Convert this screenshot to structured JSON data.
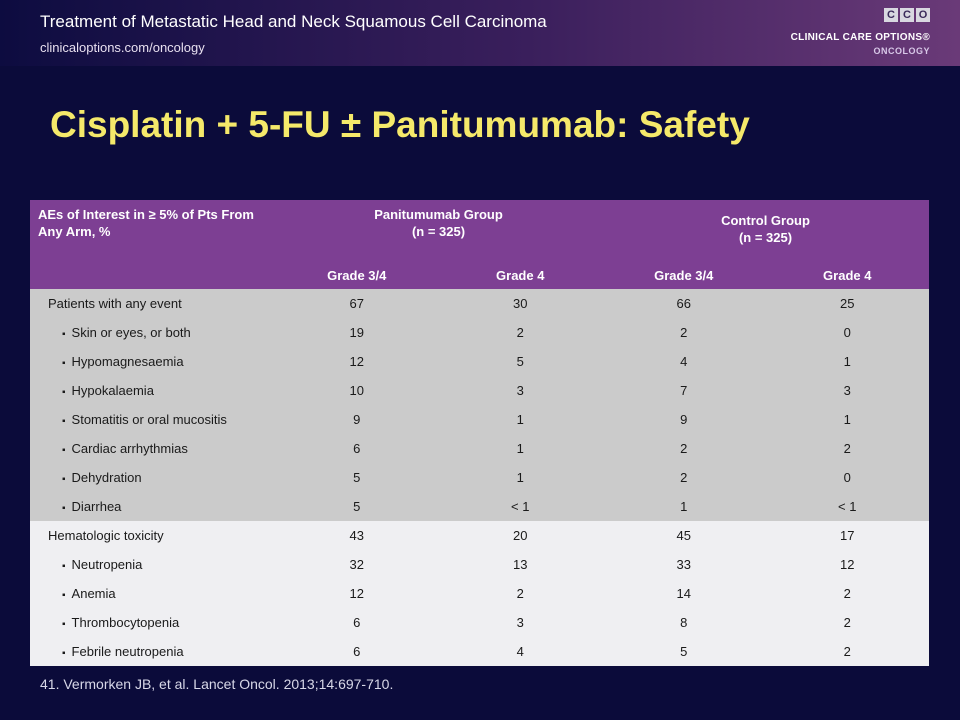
{
  "header": {
    "title": "Treatment of Metastatic Head and Neck Squamous Cell Carcinoma",
    "subtitle": "clinicaloptions.com/oncology"
  },
  "logo": {
    "letters": [
      "C",
      "C",
      "O"
    ],
    "line1": "CLINICAL CARE OPTIONS®",
    "line2": "ONCOLOGY"
  },
  "slide_title": "Cisplatin + 5-FU ± Panitumumab: Safety",
  "table": {
    "header_left": "AEs of Interest in ≥ 5% of Pts From Any Arm, %",
    "group1_name": "Panitumumab Group",
    "group1_n": "(n = 325)",
    "group2_name": "Control Group",
    "group2_n": "(n = 325)",
    "subheaders": [
      "Grade 3/4",
      "Grade 4",
      "Grade 3/4",
      "Grade 4"
    ],
    "rows": [
      {
        "label": "Patients with any event",
        "values": [
          "67",
          "30",
          "66",
          "25"
        ]
      },
      {
        "label": "Skin or eyes, or both",
        "values": [
          "19",
          "2",
          "2",
          "0"
        ]
      },
      {
        "label": "Hypomagnesaemia",
        "values": [
          "12",
          "5",
          "4",
          "1"
        ]
      },
      {
        "label": "Hypokalaemia",
        "values": [
          "10",
          "3",
          "7",
          "3"
        ]
      },
      {
        "label": "Stomatitis or oral mucositis",
        "values": [
          "9",
          "1",
          "9",
          "1"
        ]
      },
      {
        "label": "Cardiac arrhythmias",
        "values": [
          "6",
          "1",
          "2",
          "2"
        ]
      },
      {
        "label": "Dehydration",
        "values": [
          "5",
          "1",
          "2",
          "0"
        ]
      },
      {
        "label": "Diarrhea",
        "values": [
          "5",
          "< 1",
          "1",
          "< 1"
        ]
      },
      {
        "label": "Hematologic toxicity",
        "values": [
          "43",
          "20",
          "45",
          "17"
        ]
      },
      {
        "label": "Neutropenia",
        "values": [
          "32",
          "13",
          "33",
          "12"
        ]
      },
      {
        "label": "Anemia",
        "values": [
          "12",
          "2",
          "14",
          "2"
        ]
      },
      {
        "label": "Thrombocytopenia",
        "values": [
          "6",
          "3",
          "8",
          "2"
        ]
      },
      {
        "label": "Febrile neutropenia",
        "values": [
          "6",
          "4",
          "5",
          "2"
        ]
      }
    ]
  },
  "citation": "41. Vermorken JB, et al. Lancet Oncol. 2013;14:697-710.",
  "colors": {
    "background": "#0b0b3a",
    "title": "#f5e96a",
    "table_header": "#7d3f93",
    "row_group1": "#cbcbcb",
    "row_group2": "#efeff2"
  }
}
